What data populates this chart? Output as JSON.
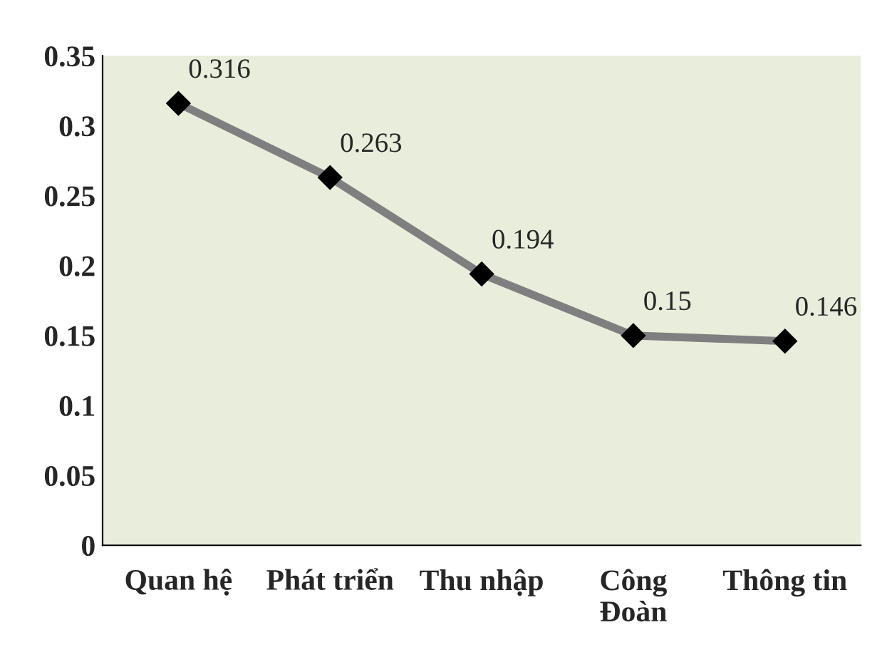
{
  "chart_data": {
    "type": "line",
    "categories": [
      "Quan hệ",
      "Phát triển",
      "Thu nhập",
      "Công\nĐoàn",
      "Thông tin"
    ],
    "series": [
      {
        "color": "#7f7f7f",
        "values": [
          0.316,
          0.263,
          0.194,
          0.15,
          0.146
        ]
      }
    ],
    "ylim": [
      0,
      0.35
    ],
    "yticks": [
      0,
      0.05,
      0.1,
      0.15,
      0.2,
      0.25,
      0.3,
      0.35
    ],
    "grid": false,
    "legend": false,
    "marker": "diamond",
    "line_style": "solid",
    "data_labels": true
  }
}
